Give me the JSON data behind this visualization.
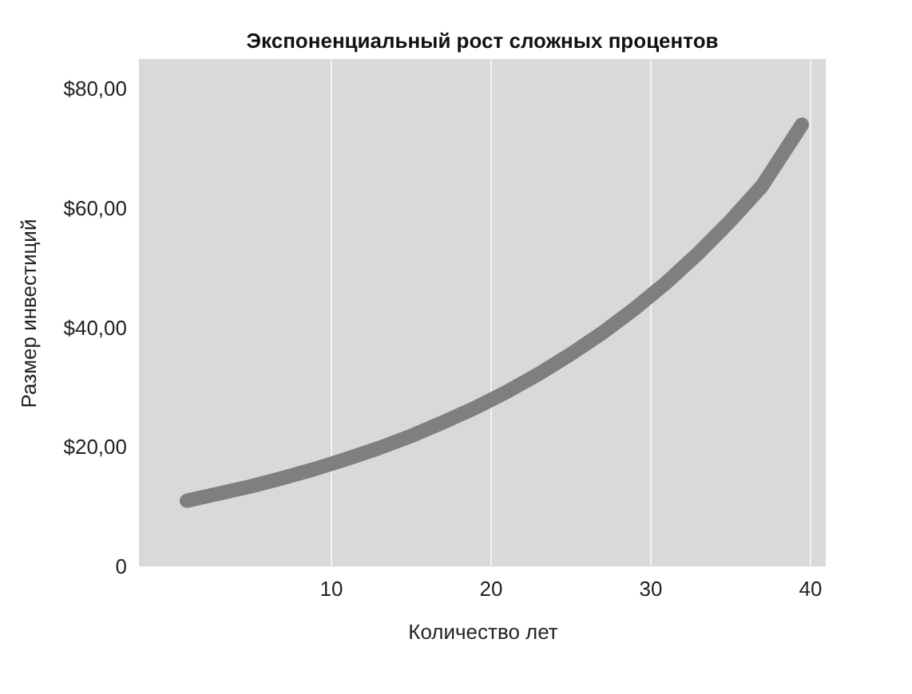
{
  "chart_data": {
    "type": "line",
    "title": "Экспоненциальный рост сложных процентов",
    "xlabel": "Количество лет",
    "ylabel": "Размер инвестиций",
    "x": [
      1,
      3,
      5,
      7,
      9,
      11,
      13,
      15,
      17,
      19,
      21,
      23,
      25,
      27,
      29,
      31,
      33,
      35,
      37,
      39.5
    ],
    "series": [
      {
        "color": "#7f7f7f",
        "values": [
          11.0,
          12.2,
          13.4,
          14.8,
          16.3,
          18.0,
          19.8,
          21.8,
          24.1,
          26.5,
          29.2,
          32.2,
          35.5,
          39.1,
          43.1,
          47.5,
          52.4,
          57.8,
          63.7,
          74.0
        ]
      }
    ],
    "xlim": [
      -2,
      41
    ],
    "xticks": [
      10,
      20,
      30,
      40
    ],
    "ylim": [
      0,
      85
    ],
    "yticks": [
      0,
      {
        "value": 20,
        "label": "$20,00"
      },
      {
        "value": 40,
        "label": "$40,00"
      },
      {
        "value": 60,
        "label": "$60,00"
      },
      {
        "value": 80,
        "label": "$80,00"
      }
    ],
    "grid": "x",
    "legend": false,
    "line_style": "solid"
  }
}
